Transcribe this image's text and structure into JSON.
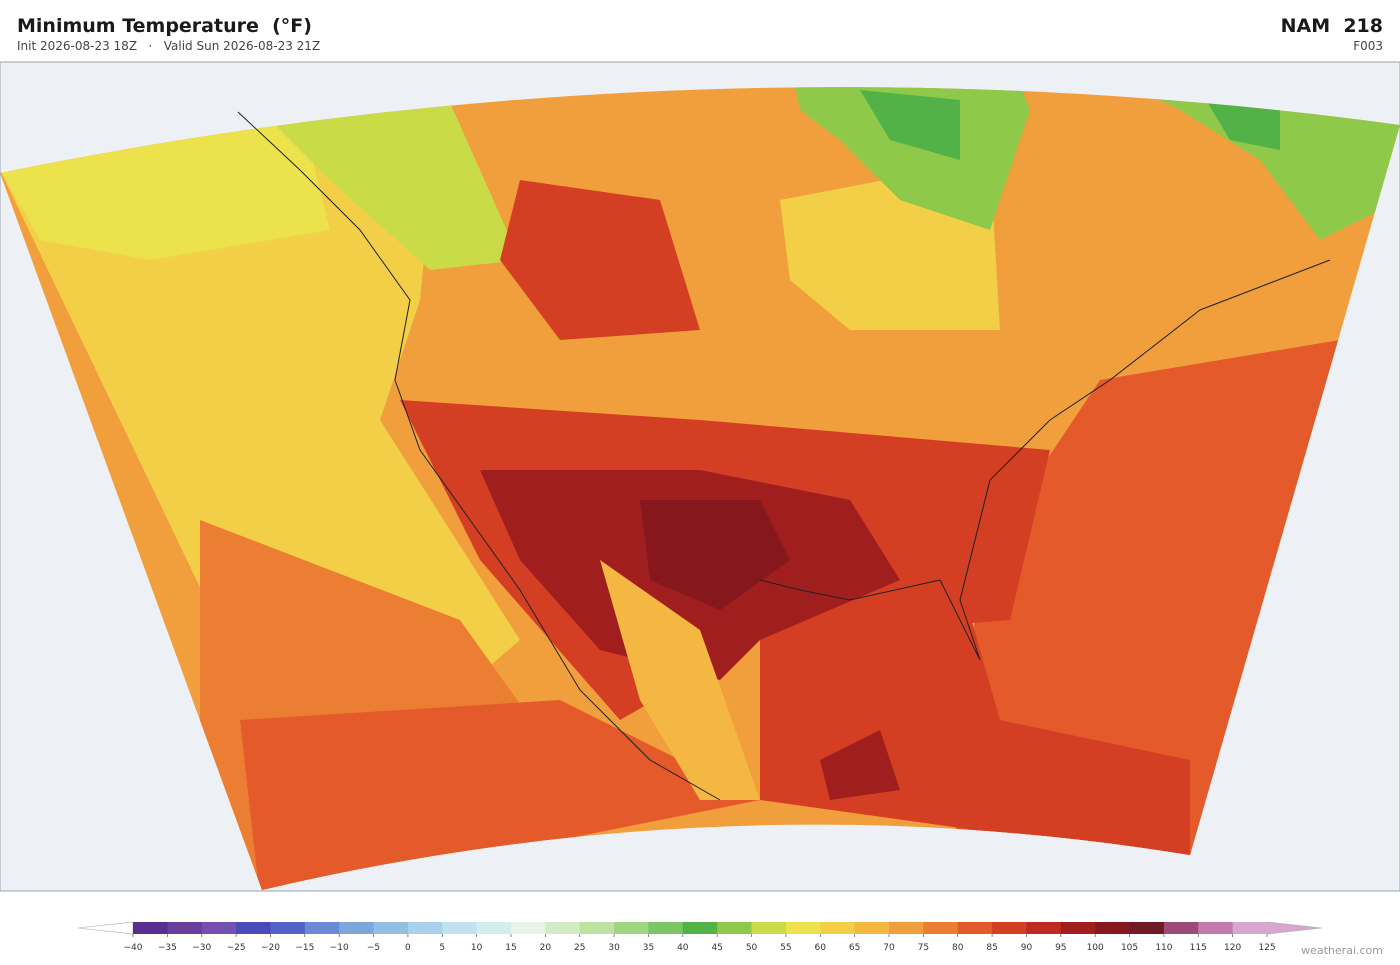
{
  "header": {
    "title": "Minimum Temperature  (°F)",
    "subtitle": "Init 2026-08-23 18Z   ·   Valid Sun 2026-08-23 21Z",
    "model": "NAM  218",
    "forecast_hour": "F003"
  },
  "colorbar": {
    "ticks": [
      {
        "value": -40,
        "label": "−40"
      },
      {
        "value": -35,
        "label": "−35"
      },
      {
        "value": -30,
        "label": "−30"
      },
      {
        "value": -25,
        "label": "−25"
      },
      {
        "value": -20,
        "label": "−20"
      },
      {
        "value": -15,
        "label": "−15"
      },
      {
        "value": -10,
        "label": "−10"
      },
      {
        "value": -5,
        "label": "−5"
      },
      0,
      5,
      10,
      15,
      20,
      25,
      30,
      35,
      40,
      45,
      50,
      55,
      60,
      65,
      70,
      75,
      80,
      85,
      90,
      95,
      100,
      105,
      110,
      115,
      120,
      125
    ],
    "colors": [
      "#5a2d91",
      "#6a3d9a",
      "#7650b0",
      "#4a4ab8",
      "#4f63c8",
      "#6a8ad6",
      "#7fa6dc",
      "#93bfe3",
      "#a9d0ea",
      "#c3e2ef",
      "#d6ecf0",
      "#e6f4ea",
      "#d4ecc4",
      "#bde3a0",
      "#9fd57f",
      "#7cc564",
      "#52b248",
      "#8fc94a",
      "#c9dc48",
      "#ece24b",
      "#f3cf47",
      "#f4b842",
      "#f19e3c",
      "#ec7e33",
      "#e45a2a",
      "#d43f24",
      "#bc2a22",
      "#a11e1f",
      "#86171d",
      "#6f1a24",
      "#9b4a7a",
      "#c27bac",
      "#d9a6cf"
    ],
    "under_color": "#ffffff",
    "over_color": "#d9a6cf"
  },
  "watermark": "weatherai.com"
}
